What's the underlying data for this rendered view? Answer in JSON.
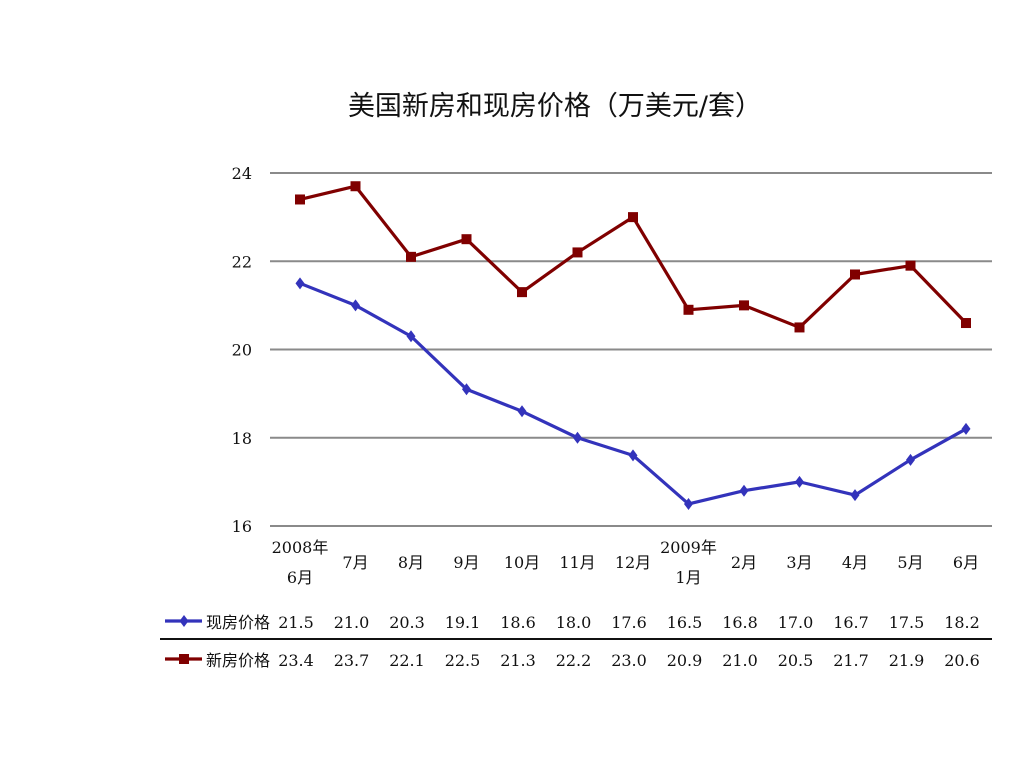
{
  "chart_data": {
    "type": "line",
    "title": "美国新房和现房价格（万美元/套）",
    "xlabel": "",
    "ylabel": "",
    "ylim": [
      16,
      24
    ],
    "yticks": [
      "16",
      "18",
      "20",
      "22",
      "24"
    ],
    "grid": true,
    "legend_position": "bottom-table",
    "categories": [
      [
        "2008年",
        "6月"
      ],
      [
        "7月"
      ],
      [
        "8月"
      ],
      [
        "9月"
      ],
      [
        "10月"
      ],
      [
        "11月"
      ],
      [
        "12月"
      ],
      [
        "2009年",
        "1月"
      ],
      [
        "2月"
      ],
      [
        "3月"
      ],
      [
        "4月"
      ],
      [
        "5月"
      ],
      [
        "6月"
      ]
    ],
    "series": [
      {
        "name": "现房价格",
        "color": "#3333bb",
        "marker": "diamond",
        "values": [
          21.5,
          21.0,
          20.3,
          19.1,
          18.6,
          18.0,
          17.6,
          16.5,
          16.8,
          17.0,
          16.7,
          17.5,
          18.2
        ],
        "table_labels": [
          "21.5",
          "21.0",
          "20.3",
          "19.1",
          "18.6",
          "18.0",
          "17.6",
          "16.5",
          "16.8",
          "17.0",
          "16.7",
          "17.5",
          "18.2"
        ]
      },
      {
        "name": "新房价格",
        "color": "#800000",
        "marker": "square",
        "values": [
          23.4,
          23.7,
          22.1,
          22.5,
          21.3,
          22.2,
          23.0,
          20.9,
          21.0,
          20.5,
          21.7,
          21.9,
          20.6
        ],
        "table_labels": [
          "23.4",
          "23.7",
          "22.1",
          "22.5",
          "21.3",
          "22.2",
          "23.0",
          "20.9",
          "21.0",
          "20.5",
          "21.7",
          "21.9",
          "20.6"
        ]
      }
    ]
  }
}
